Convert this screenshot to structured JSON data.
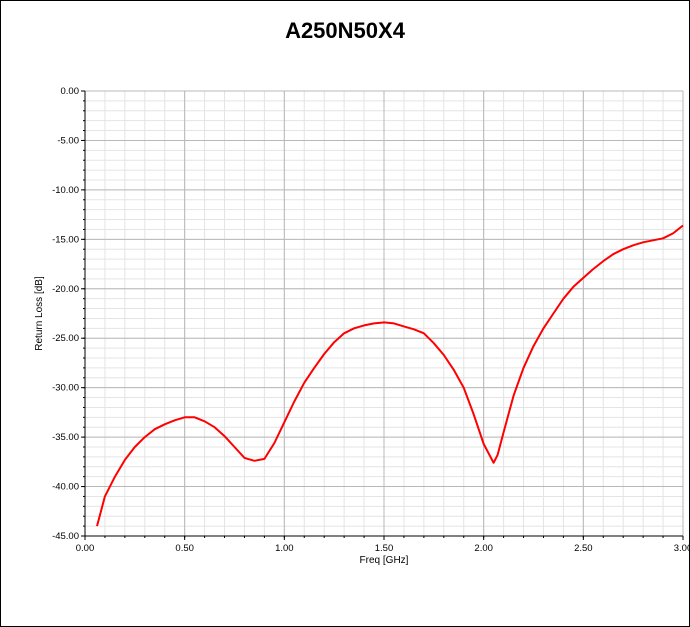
{
  "chart_data": {
    "type": "line",
    "title": "A250N50X4",
    "xlabel": "Freq [GHz]",
    "ylabel": "Return Loss [dB]",
    "xlim": [
      0.0,
      3.0
    ],
    "ylim": [
      -45.0,
      0.0
    ],
    "x_ticks": [
      "0.00",
      "0.50",
      "1.00",
      "1.50",
      "2.00",
      "2.50",
      "3.00"
    ],
    "y_ticks": [
      "0.00",
      "-5.00",
      "-10.00",
      "-15.00",
      "-20.00",
      "-25.00",
      "-30.00",
      "-35.00",
      "-40.00",
      "-45.00"
    ],
    "grid": true,
    "series": [
      {
        "color": "#ff0000",
        "x": [
          0.06,
          0.1,
          0.15,
          0.2,
          0.25,
          0.3,
          0.35,
          0.4,
          0.45,
          0.5,
          0.55,
          0.6,
          0.65,
          0.7,
          0.75,
          0.8,
          0.85,
          0.9,
          0.95,
          1.0,
          1.05,
          1.1,
          1.15,
          1.2,
          1.25,
          1.3,
          1.35,
          1.4,
          1.45,
          1.5,
          1.55,
          1.6,
          1.65,
          1.7,
          1.75,
          1.8,
          1.85,
          1.9,
          1.95,
          2.0,
          2.05,
          2.07,
          2.1,
          2.15,
          2.2,
          2.25,
          2.3,
          2.35,
          2.4,
          2.45,
          2.5,
          2.55,
          2.6,
          2.65,
          2.7,
          2.75,
          2.8,
          2.85,
          2.9,
          2.95,
          3.0
        ],
        "y": [
          -44.0,
          -41.0,
          -39.0,
          -37.3,
          -36.0,
          -35.0,
          -34.2,
          -33.7,
          -33.3,
          -33.0,
          -33.0,
          -33.4,
          -34.0,
          -34.9,
          -36.0,
          -37.1,
          -37.4,
          -37.2,
          -35.6,
          -33.5,
          -31.4,
          -29.5,
          -28.0,
          -26.6,
          -25.4,
          -24.5,
          -24.0,
          -23.7,
          -23.5,
          -23.4,
          -23.5,
          -23.8,
          -24.1,
          -24.5,
          -25.5,
          -26.7,
          -28.2,
          -30.0,
          -32.7,
          -35.7,
          -37.6,
          -36.8,
          -34.5,
          -30.8,
          -28.0,
          -25.8,
          -24.0,
          -22.5,
          -21.0,
          -19.8,
          -18.9,
          -18.0,
          -17.2,
          -16.5,
          -16.0,
          -15.6,
          -15.3,
          -15.1,
          -14.9,
          -14.4,
          -13.6
        ]
      }
    ]
  }
}
